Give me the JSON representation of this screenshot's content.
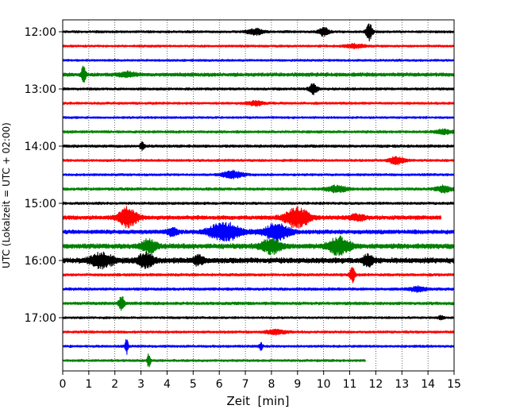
{
  "chart_data": {
    "type": "line",
    "chart_kind": "helicorder",
    "xlabel": "Zeit  [min]",
    "ylabel": "UTC (Lokalzeit = UTC + 02:00)",
    "xlim": [
      0,
      15
    ],
    "x_ticks": [
      "0",
      "1",
      "2",
      "3",
      "4",
      "5",
      "6",
      "7",
      "8",
      "9",
      "10",
      "11",
      "12",
      "13",
      "14",
      "15"
    ],
    "y_ticks": [
      "12:00",
      "13:00",
      "14:00",
      "15:00",
      "16:00",
      "17:00"
    ],
    "trace_colors": [
      "#000000",
      "#ff0000",
      "#0000ff",
      "#008000"
    ],
    "grid": "vertical dotted lines at every minute",
    "traces": [
      {
        "start": "12:00",
        "color": "#000000",
        "noise": 0.14,
        "events": [
          {
            "t": 7.4,
            "a": 0.4,
            "w": 0.3
          },
          {
            "t": 10.0,
            "a": 0.55,
            "w": 0.2
          },
          {
            "t": 11.75,
            "a": 1.2,
            "w": 0.12
          }
        ]
      },
      {
        "start": "12:15",
        "color": "#ff0000",
        "noise": 0.13,
        "events": [
          {
            "t": 11.2,
            "a": 0.25,
            "w": 0.4
          }
        ]
      },
      {
        "start": "12:30",
        "color": "#0000ff",
        "noise": 0.13,
        "events": []
      },
      {
        "start": "12:45",
        "color": "#008000",
        "noise": 0.22,
        "events": [
          {
            "t": 0.8,
            "a": 1.2,
            "w": 0.08
          },
          {
            "t": 2.5,
            "a": 0.3,
            "w": 0.3
          }
        ]
      },
      {
        "start": "13:00",
        "color": "#000000",
        "noise": 0.15,
        "events": [
          {
            "t": 9.6,
            "a": 0.7,
            "w": 0.15
          }
        ]
      },
      {
        "start": "13:15",
        "color": "#ff0000",
        "noise": 0.14,
        "events": [
          {
            "t": 7.4,
            "a": 0.3,
            "w": 0.3
          }
        ]
      },
      {
        "start": "13:30",
        "color": "#0000ff",
        "noise": 0.13,
        "events": []
      },
      {
        "start": "13:45",
        "color": "#008000",
        "noise": 0.15,
        "events": [
          {
            "t": 14.6,
            "a": 0.3,
            "w": 0.3
          }
        ]
      },
      {
        "start": "14:00",
        "color": "#000000",
        "noise": 0.16,
        "events": [
          {
            "t": 3.05,
            "a": 0.5,
            "w": 0.08
          }
        ]
      },
      {
        "start": "14:15",
        "color": "#ff0000",
        "noise": 0.14,
        "events": [
          {
            "t": 12.8,
            "a": 0.5,
            "w": 0.3
          }
        ]
      },
      {
        "start": "14:30",
        "color": "#0000ff",
        "noise": 0.14,
        "events": [
          {
            "t": 6.5,
            "a": 0.5,
            "w": 0.4
          }
        ]
      },
      {
        "start": "14:45",
        "color": "#008000",
        "noise": 0.16,
        "events": [
          {
            "t": 10.5,
            "a": 0.4,
            "w": 0.4
          },
          {
            "t": 14.6,
            "a": 0.4,
            "w": 0.3
          }
        ]
      },
      {
        "start": "15:00",
        "color": "#000000",
        "noise": 0.15,
        "events": []
      },
      {
        "start": "15:15",
        "color": "#ff0000",
        "noise": 0.24,
        "end": 14.5,
        "events": [
          {
            "t": 2.5,
            "a": 1.3,
            "w": 0.35
          },
          {
            "t": 9.0,
            "a": 1.4,
            "w": 0.45
          },
          {
            "t": 11.3,
            "a": 0.4,
            "w": 0.3
          }
        ]
      },
      {
        "start": "15:30",
        "color": "#0000ff",
        "noise": 0.24,
        "events": [
          {
            "t": 6.2,
            "a": 1.2,
            "w": 0.6
          },
          {
            "t": 8.2,
            "a": 1.1,
            "w": 0.5
          },
          {
            "t": 4.2,
            "a": 0.5,
            "w": 0.2
          }
        ]
      },
      {
        "start": "15:45",
        "color": "#008000",
        "noise": 0.3,
        "events": [
          {
            "t": 3.3,
            "a": 0.8,
            "w": 0.3
          },
          {
            "t": 8.0,
            "a": 0.9,
            "w": 0.4
          },
          {
            "t": 10.6,
            "a": 1.2,
            "w": 0.4
          }
        ]
      },
      {
        "start": "16:00",
        "color": "#000000",
        "noise": 0.32,
        "events": [
          {
            "t": 1.5,
            "a": 1.0,
            "w": 0.4
          },
          {
            "t": 3.2,
            "a": 1.0,
            "w": 0.3
          },
          {
            "t": 5.2,
            "a": 0.6,
            "w": 0.2
          },
          {
            "t": 11.7,
            "a": 0.7,
            "w": 0.2
          }
        ]
      },
      {
        "start": "16:15",
        "color": "#ff0000",
        "noise": 0.16,
        "events": [
          {
            "t": 11.1,
            "a": 1.1,
            "w": 0.1
          }
        ]
      },
      {
        "start": "16:30",
        "color": "#0000ff",
        "noise": 0.16,
        "events": [
          {
            "t": 13.6,
            "a": 0.3,
            "w": 0.3
          }
        ]
      },
      {
        "start": "16:45",
        "color": "#008000",
        "noise": 0.17,
        "events": [
          {
            "t": 2.25,
            "a": 1.1,
            "w": 0.1
          }
        ]
      },
      {
        "start": "17:00",
        "color": "#000000",
        "noise": 0.13,
        "events": [
          {
            "t": 14.5,
            "a": 0.3,
            "w": 0.1
          }
        ]
      },
      {
        "start": "17:15",
        "color": "#ff0000",
        "noise": 0.14,
        "events": [
          {
            "t": 8.2,
            "a": 0.3,
            "w": 0.4
          }
        ]
      },
      {
        "start": "17:30",
        "color": "#0000ff",
        "noise": 0.14,
        "events": [
          {
            "t": 2.45,
            "a": 1.1,
            "w": 0.06
          },
          {
            "t": 7.6,
            "a": 0.5,
            "w": 0.06
          }
        ]
      },
      {
        "start": "17:45",
        "color": "#008000",
        "noise": 0.14,
        "end": 11.6,
        "events": [
          {
            "t": 3.3,
            "a": 1.0,
            "w": 0.06
          }
        ]
      }
    ]
  }
}
